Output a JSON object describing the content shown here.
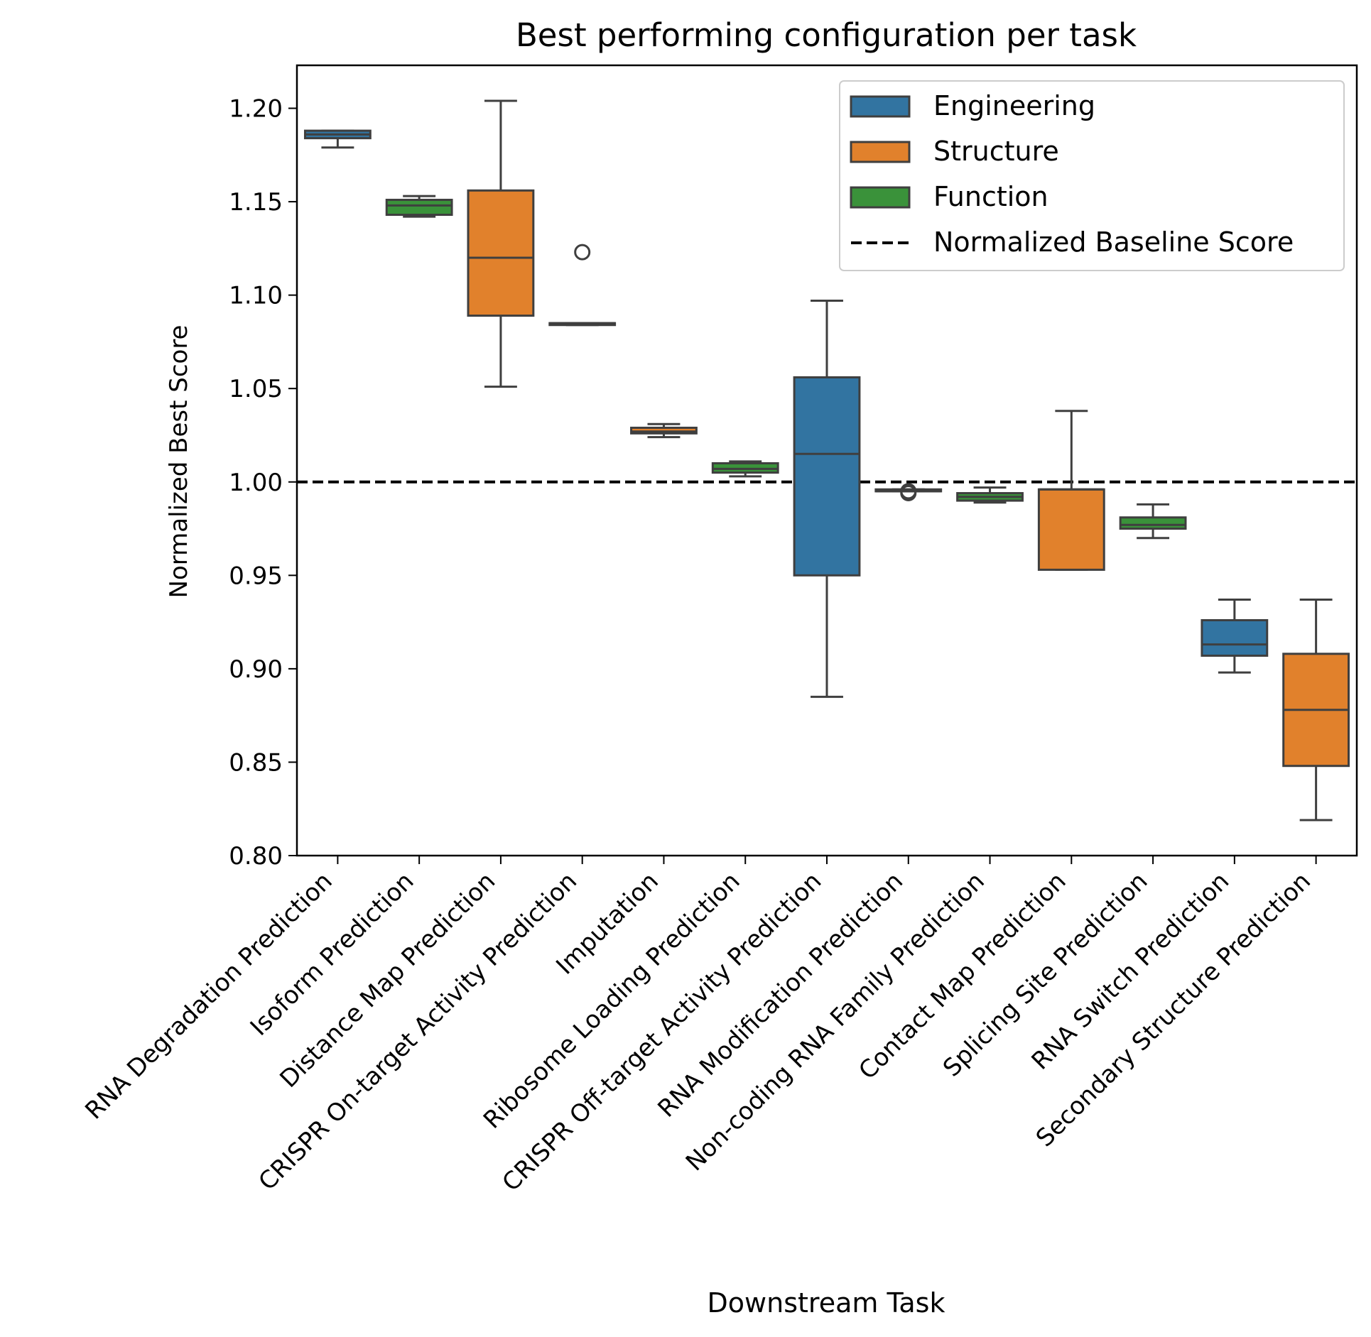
{
  "chart_data": {
    "type": "box",
    "title": "Best performing configuration per task",
    "xlabel": "Downstream Task",
    "ylabel": "Normalized Best Score",
    "ylim": [
      0.8,
      1.223
    ],
    "yticks": [
      0.8,
      0.85,
      0.9,
      0.95,
      1.0,
      1.05,
      1.1,
      1.15,
      1.2
    ],
    "ytick_labels": [
      "0.80",
      "0.85",
      "0.90",
      "0.95",
      "1.00",
      "1.05",
      "1.10",
      "1.15",
      "1.20"
    ],
    "baseline": {
      "value": 1.0,
      "label": "Normalized Baseline Score",
      "color": "#000000"
    },
    "legend_position": "top-right",
    "groups": [
      {
        "name": "Engineering",
        "color": "#3274a1"
      },
      {
        "name": "Structure",
        "color": "#e1812c"
      },
      {
        "name": "Function",
        "color": "#3a923a"
      }
    ],
    "boxes": [
      {
        "category": "RNA Degradation Prediction",
        "group": "Engineering",
        "whisker_low": 1.179,
        "q1": 1.184,
        "median": 1.186,
        "q3": 1.188,
        "whisker_high": 1.188,
        "outliers": []
      },
      {
        "category": "Isoform Prediction",
        "group": "Function",
        "whisker_low": 1.142,
        "q1": 1.143,
        "median": 1.148,
        "q3": 1.151,
        "whisker_high": 1.153,
        "outliers": []
      },
      {
        "category": "Distance Map Prediction",
        "group": "Structure",
        "whisker_low": 1.051,
        "q1": 1.089,
        "median": 1.12,
        "q3": 1.156,
        "whisker_high": 1.204,
        "outliers": []
      },
      {
        "category": "CRISPR On-target Activity Prediction",
        "group": "Engineering",
        "whisker_low": 1.084,
        "q1": 1.084,
        "median": 1.085,
        "q3": 1.085,
        "whisker_high": 1.085,
        "outliers": [
          1.123
        ]
      },
      {
        "category": "Imputation",
        "group": "Structure",
        "whisker_low": 1.024,
        "q1": 1.026,
        "median": 1.027,
        "q3": 1.029,
        "whisker_high": 1.031,
        "outliers": []
      },
      {
        "category": "Ribosome Loading Prediction",
        "group": "Function",
        "whisker_low": 1.003,
        "q1": 1.005,
        "median": 1.007,
        "q3": 1.01,
        "whisker_high": 1.011,
        "outliers": []
      },
      {
        "category": "CRISPR Off-target Activity Prediction",
        "group": "Engineering",
        "whisker_low": 0.885,
        "q1": 0.95,
        "median": 1.015,
        "q3": 1.056,
        "whisker_high": 1.097,
        "outliers": []
      },
      {
        "category": "RNA Modification Prediction",
        "group": "Engineering",
        "whisker_low": 0.995,
        "q1": 0.995,
        "median": 0.995,
        "q3": 0.996,
        "whisker_high": 0.996,
        "outliers": [
          0.994,
          0.995
        ]
      },
      {
        "category": "Non-coding RNA Family Prediction",
        "group": "Function",
        "whisker_low": 0.989,
        "q1": 0.99,
        "median": 0.992,
        "q3": 0.994,
        "whisker_high": 0.997,
        "outliers": []
      },
      {
        "category": "Contact Map Prediction",
        "group": "Structure",
        "whisker_low": 0.953,
        "q1": 0.953,
        "median": 0.996,
        "q3": 0.996,
        "whisker_high": 1.038,
        "outliers": []
      },
      {
        "category": "Splicing Site Prediction",
        "group": "Function",
        "whisker_low": 0.97,
        "q1": 0.975,
        "median": 0.977,
        "q3": 0.981,
        "whisker_high": 0.988,
        "outliers": []
      },
      {
        "category": "RNA Switch Prediction",
        "group": "Engineering",
        "whisker_low": 0.898,
        "q1": 0.907,
        "median": 0.913,
        "q3": 0.926,
        "whisker_high": 0.937,
        "outliers": []
      },
      {
        "category": "Secondary Structure Prediction",
        "group": "Structure",
        "whisker_low": 0.819,
        "q1": 0.848,
        "median": 0.878,
        "q3": 0.908,
        "whisker_high": 0.937,
        "outliers": []
      }
    ]
  }
}
